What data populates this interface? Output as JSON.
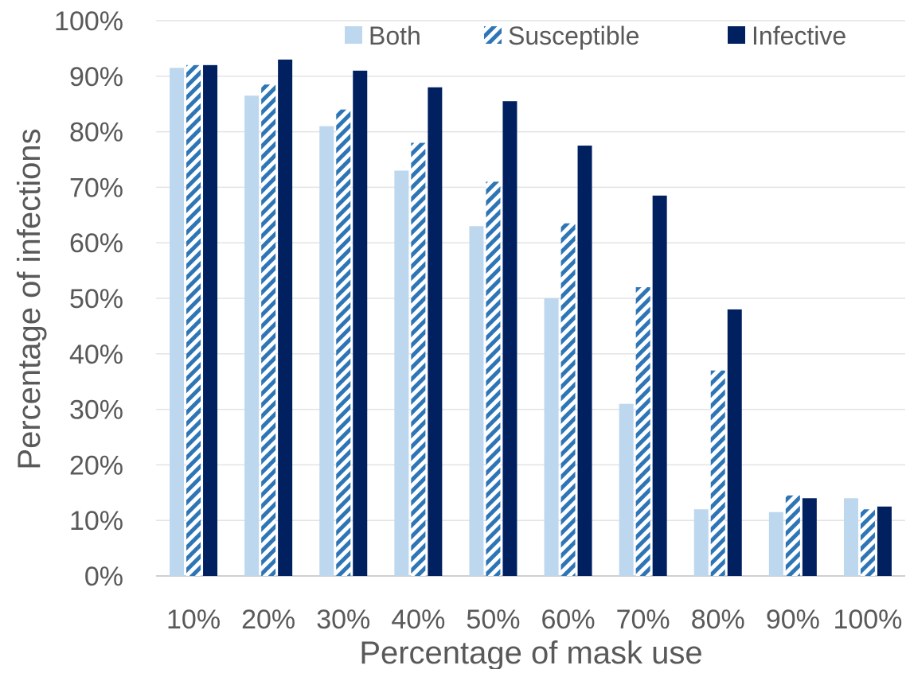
{
  "chart_data": {
    "type": "bar",
    "xlabel": "Percentage of mask use",
    "ylabel": "Percentage of infections",
    "categories": [
      "10%",
      "20%",
      "30%",
      "40%",
      "50%",
      "60%",
      "70%",
      "80%",
      "90%",
      "100%"
    ],
    "y_ticks": [
      "0%",
      "10%",
      "20%",
      "30%",
      "40%",
      "50%",
      "60%",
      "70%",
      "80%",
      "90%",
      "100%"
    ],
    "ylim": [
      0,
      100
    ],
    "grid": true,
    "legend_position": "top-right",
    "series": [
      {
        "name": "Both",
        "color": "#bdd7ee",
        "pattern": "solid",
        "values": [
          91.5,
          86.5,
          81,
          73,
          63,
          50,
          31,
          12,
          11.5,
          14
        ]
      },
      {
        "name": "Susceptible",
        "color": "#2e75b6",
        "pattern": "hatched",
        "values": [
          92,
          88.5,
          84,
          78,
          71,
          63.5,
          52,
          37,
          14.5,
          12
        ]
      },
      {
        "name": "Infective",
        "color": "#002060",
        "pattern": "solid",
        "values": [
          92,
          93,
          91,
          88,
          85.5,
          77.5,
          68.5,
          48,
          14,
          12.5
        ]
      }
    ]
  }
}
